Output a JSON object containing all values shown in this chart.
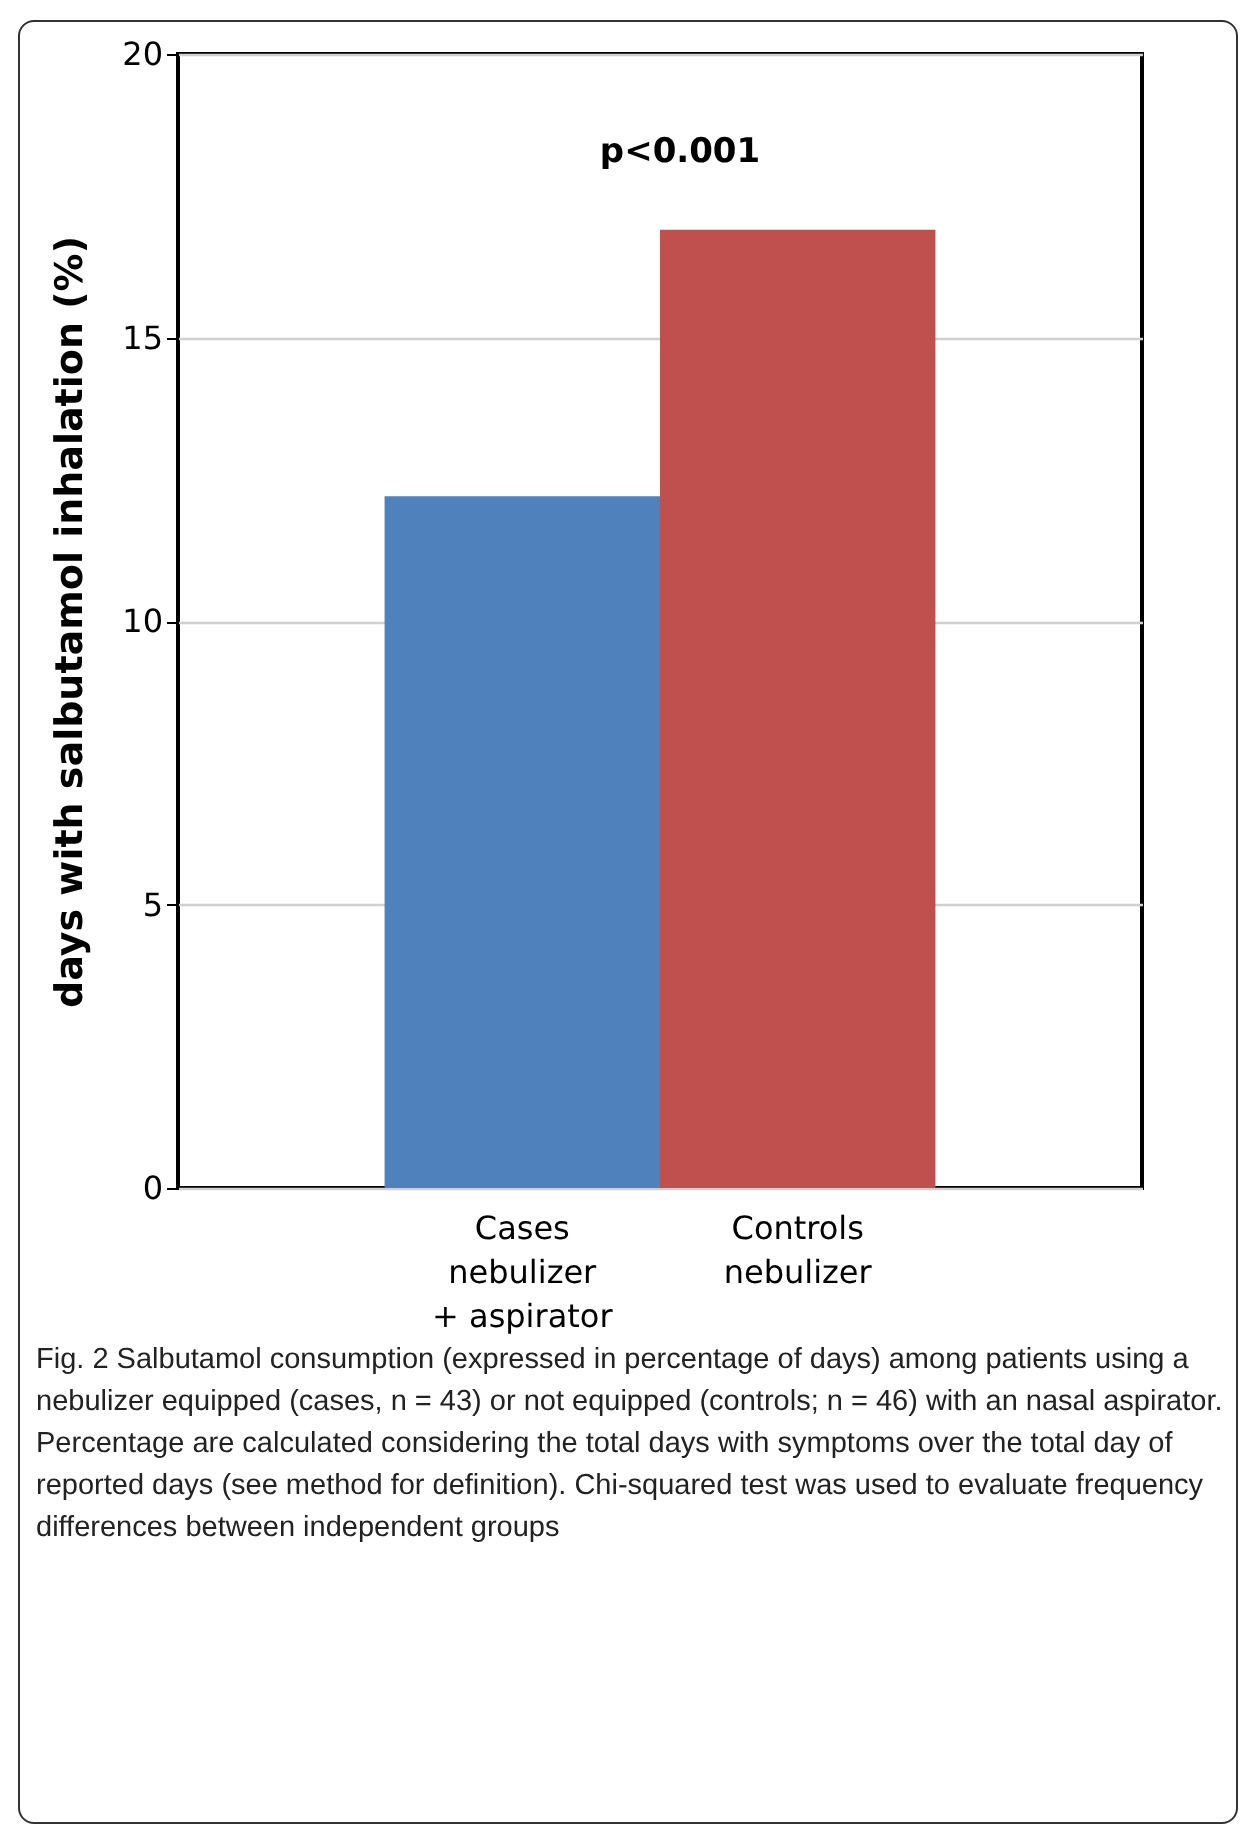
{
  "chart_data": {
    "type": "bar",
    "ylabel": "days with salbutamol inhalation (%)",
    "categories": [
      "Cases\nnebulizer\n+ aspirator",
      "Controls\nnebulizer"
    ],
    "values": [
      12.2,
      16.9
    ],
    "colors": [
      "#4f81bd",
      "#c0504d"
    ],
    "ylim": [
      0,
      20
    ],
    "yticks": [
      0,
      5,
      10,
      15,
      20
    ],
    "grid": "y",
    "legend": false,
    "annotations": [
      "p<0.001",
      "Fig. 2 Salbutamol consumption (expressed in percentage of days) among patients using a nebulizer equipped (cases, n = 43) or not equipped (controls; n = 46) with an nasal aspirator. Percentage are calculated considering the total days with symptoms over the total day of reported days (see method for definition). Chi-squared test was used to evaluate frequency differences between independent groups"
    ]
  }
}
